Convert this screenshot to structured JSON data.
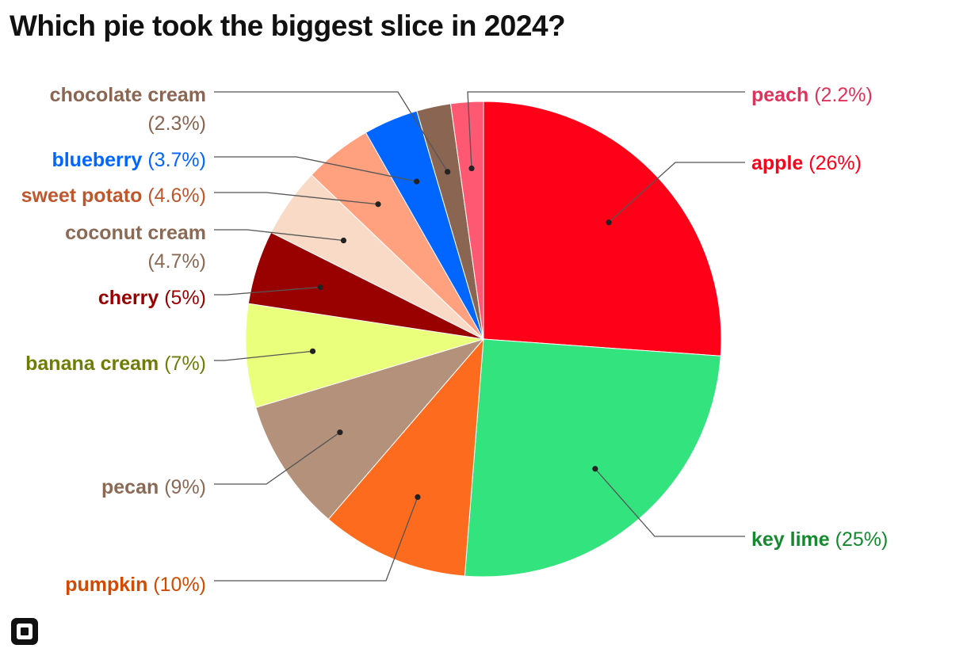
{
  "title": "Which pie took the biggest slice in 2024?",
  "logo": {
    "icon": "square-logo-icon"
  },
  "chart_data": {
    "type": "pie",
    "title": "Which pie took the biggest slice in 2024?",
    "slices": [
      {
        "name": "apple",
        "value": 26,
        "label_value": "(26%)",
        "color": "#ff0019",
        "label_color": "#ff0019"
      },
      {
        "name": "key lime",
        "value": 25,
        "label_value": "(25%)",
        "color": "#33e37e",
        "label_color": "#138a2e"
      },
      {
        "name": "pumpkin",
        "value": 10,
        "label_value": "(10%)",
        "color": "#fd6b1f",
        "label_color": "#d24a00"
      },
      {
        "name": "pecan",
        "value": 9,
        "label_value": "(9%)",
        "color": "#b4917b",
        "label_color": "#8b6a55"
      },
      {
        "name": "banana cream",
        "value": 7,
        "label_value": "(7%)",
        "color": "#eaff7b",
        "label_color": "#6e7d05"
      },
      {
        "name": "cherry",
        "value": 5,
        "label_value": "(5%)",
        "color": "#990000",
        "label_color": "#990000"
      },
      {
        "name": "coconut cream",
        "value": 4.7,
        "label_value": "(4.7%)",
        "color": "#f9dac6",
        "label_color": "#8b6a55"
      },
      {
        "name": "sweet potato",
        "value": 4.6,
        "label_value": "(4.6%)",
        "color": "#ffa07f",
        "label_color": "#c0562c"
      },
      {
        "name": "blueberry",
        "value": 3.7,
        "label_value": "(3.7%)",
        "color": "#0066ff",
        "label_color": "#0066ff"
      },
      {
        "name": "chocolate cream",
        "value": 2.3,
        "label_value": "(2.3%)",
        "color": "#8a6552",
        "label_color": "#8a6552"
      },
      {
        "name": "peach",
        "value": 2.2,
        "label_value": "(2.2%)",
        "color": "#ff5872",
        "label_color": "#e0325a"
      }
    ]
  }
}
